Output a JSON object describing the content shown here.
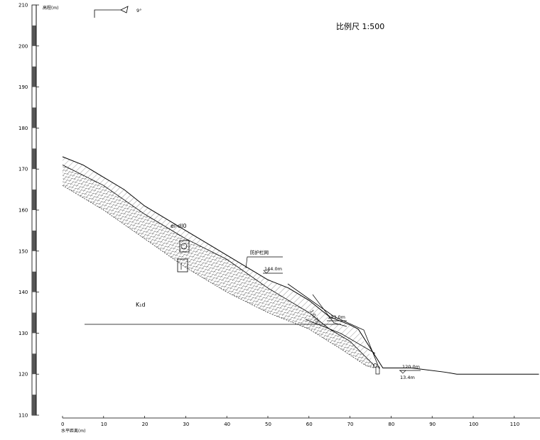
{
  "drawing": {
    "scale_label": "比例尺  1:500",
    "dip_label": "9°",
    "y_axis_title": "高程(m)",
    "x_axis_title": "水平距离(m)",
    "rock_label": "K₁d",
    "soil_label": "el-dl0",
    "net_label": "防护栏网",
    "slope_label": "1:0.75",
    "elevation_markers": [
      "144.0m",
      "133.0m",
      "120.0m",
      "13.4m"
    ]
  },
  "chart_data": {
    "type": "diagram",
    "xlabel": "水平距离(m)",
    "ylabel": "高程(m)",
    "x_ticks": [
      0,
      10,
      20,
      30,
      40,
      50,
      60,
      70,
      80,
      90,
      100,
      110
    ],
    "y_ticks": [
      110,
      120,
      130,
      140,
      150,
      160,
      170,
      180,
      190,
      200,
      210
    ],
    "xlim": [
      0,
      116
    ],
    "ylim": [
      110,
      210
    ],
    "ground_surface": [
      [
        0,
        173
      ],
      [
        5,
        171
      ],
      [
        10,
        168
      ],
      [
        15,
        165
      ],
      [
        20,
        161
      ],
      [
        25,
        158
      ],
      [
        30,
        155
      ],
      [
        35,
        152
      ],
      [
        40,
        149
      ],
      [
        45,
        146
      ],
      [
        50,
        143
      ],
      [
        55,
        141
      ],
      [
        60,
        138
      ],
      [
        65,
        134
      ],
      [
        70,
        132
      ],
      [
        72,
        131
      ],
      [
        78,
        121.5
      ],
      [
        85,
        121.5
      ],
      [
        93,
        120.5
      ],
      [
        96,
        120
      ],
      [
        100,
        120
      ],
      [
        105,
        120
      ],
      [
        110,
        120
      ],
      [
        116,
        120
      ]
    ],
    "soil_base": [
      [
        0,
        171
      ],
      [
        10,
        166
      ],
      [
        20,
        159
      ],
      [
        30,
        153
      ],
      [
        40,
        148
      ],
      [
        50,
        141
      ],
      [
        55,
        138
      ],
      [
        60,
        135
      ],
      [
        65,
        131
      ],
      [
        70,
        128
      ],
      [
        76,
        122
      ]
    ],
    "rock_top": [
      [
        0,
        166
      ],
      [
        10,
        160
      ],
      [
        20,
        153
      ],
      [
        30,
        146
      ],
      [
        40,
        140
      ],
      [
        50,
        135
      ],
      [
        60,
        131
      ],
      [
        68,
        126
      ],
      [
        74,
        122
      ],
      [
        76,
        121.5
      ]
    ]
  }
}
